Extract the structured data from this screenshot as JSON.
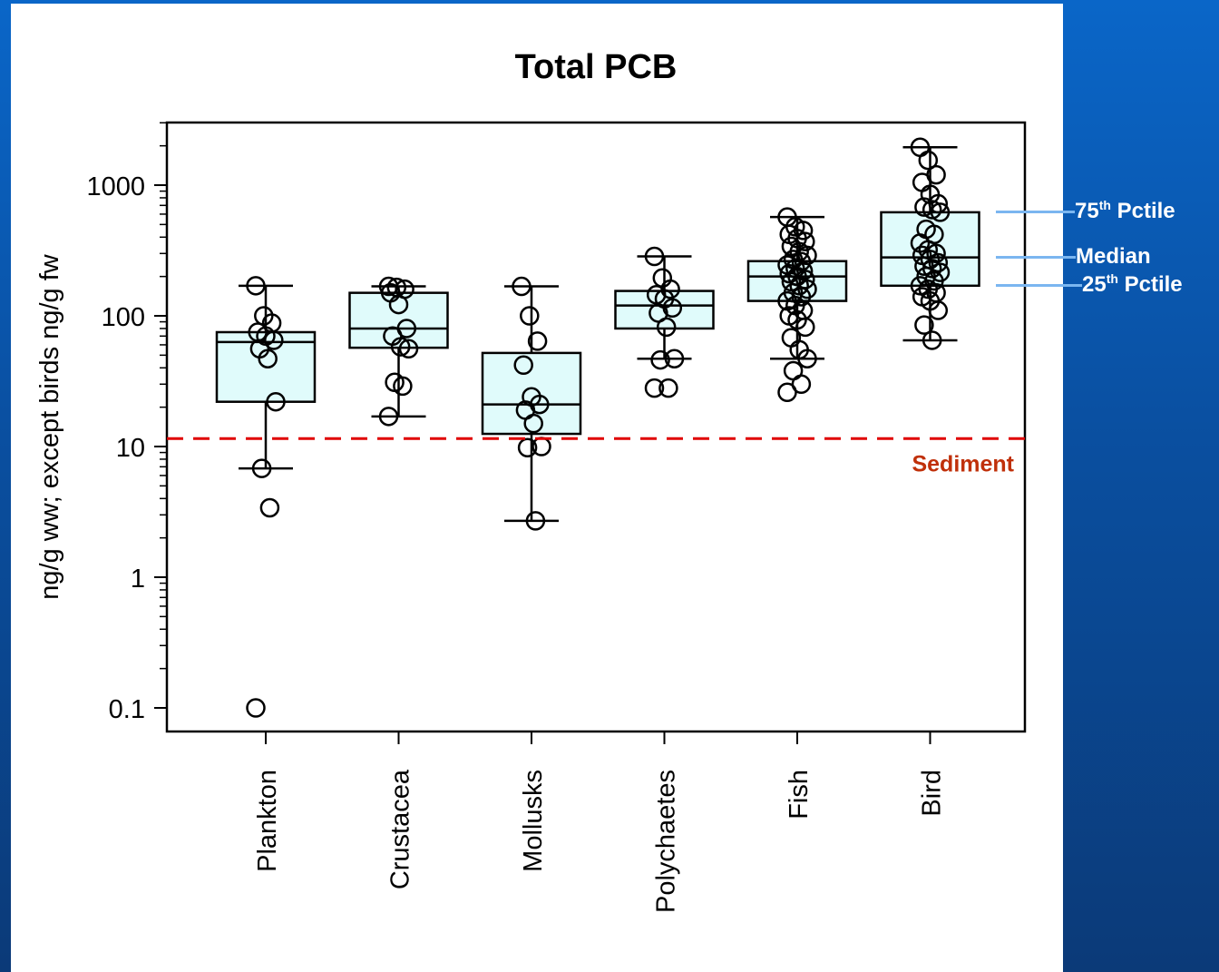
{
  "chart_data": {
    "type": "box",
    "title": "Total PCB",
    "ylabel": "ng/g ww; except birds ng/g fw",
    "xlabel": "",
    "yscale": "log",
    "ylim": [
      0.07,
      3000
    ],
    "yticks": [
      0.1,
      1,
      10,
      100,
      1000
    ],
    "ytick_labels": [
      "0.1",
      "1",
      "10",
      "100",
      "1000"
    ],
    "grid": false,
    "box_fill": "#e0fbfb",
    "point_color": "#000000",
    "categories": [
      "Plankton",
      "Crustacea",
      "Mollusks",
      "Polychaetes",
      "Fish",
      "Bird"
    ],
    "boxes": [
      {
        "category": "Plankton",
        "whisker_low": 6.8,
        "q1": 22,
        "median": 63,
        "q3": 75,
        "whisker_high": 170,
        "points": [
          170,
          100,
          88,
          75,
          70,
          65,
          56,
          47,
          22,
          6.8,
          3.4,
          0.1
        ]
      },
      {
        "category": "Crustacea",
        "whisker_low": 17,
        "q1": 57,
        "median": 80,
        "q3": 150,
        "whisker_high": 168,
        "points": [
          168,
          165,
          160,
          150,
          122,
          80,
          70,
          58,
          56,
          31,
          29,
          17
        ]
      },
      {
        "category": "Mollusks",
        "whisker_low": 2.7,
        "q1": 12.5,
        "median": 21,
        "q3": 52,
        "whisker_high": 168,
        "points": [
          168,
          100,
          64,
          42,
          24,
          21,
          19,
          15,
          10,
          9.8,
          2.7
        ]
      },
      {
        "category": "Polychaetes",
        "whisker_low": 47,
        "q1": 80,
        "median": 120,
        "q3": 155,
        "whisker_high": 285,
        "points": [
          285,
          195,
          160,
          145,
          135,
          115,
          105,
          82,
          47,
          46,
          28,
          28
        ]
      },
      {
        "category": "Fish",
        "whisker_low": 47,
        "q1": 130,
        "median": 200,
        "q3": 262,
        "whisker_high": 570,
        "points": [
          570,
          480,
          450,
          420,
          390,
          370,
          340,
          310,
          290,
          270,
          260,
          245,
          230,
          220,
          210,
          200,
          190,
          182,
          170,
          160,
          150,
          140,
          130,
          120,
          110,
          100,
          93,
          82,
          68,
          55,
          47,
          38,
          30,
          26
        ]
      },
      {
        "category": "Bird",
        "whisker_low": 65,
        "q1": 170,
        "median": 280,
        "q3": 620,
        "whisker_high": 1950,
        "points": [
          1950,
          1550,
          1200,
          1050,
          850,
          720,
          680,
          650,
          620,
          460,
          420,
          360,
          320,
          300,
          290,
          270,
          255,
          240,
          230,
          215,
          200,
          185,
          170,
          160,
          150,
          140,
          130,
          110,
          85,
          65
        ]
      }
    ],
    "reference_line": {
      "value": 11.5,
      "label": "Sediment",
      "color": "#e00000",
      "label_color": "#c0300a",
      "style": "dashed"
    }
  },
  "annotations": [
    {
      "id": "q3",
      "label": "75",
      "sup": "th",
      "suffix": " Pctile",
      "value": 620
    },
    {
      "id": "median",
      "label": "Median",
      "sup": "",
      "suffix": "",
      "value": 280
    },
    {
      "id": "q1",
      "label": "25",
      "sup": "th",
      "suffix": " Pctile",
      "value": 170
    }
  ]
}
